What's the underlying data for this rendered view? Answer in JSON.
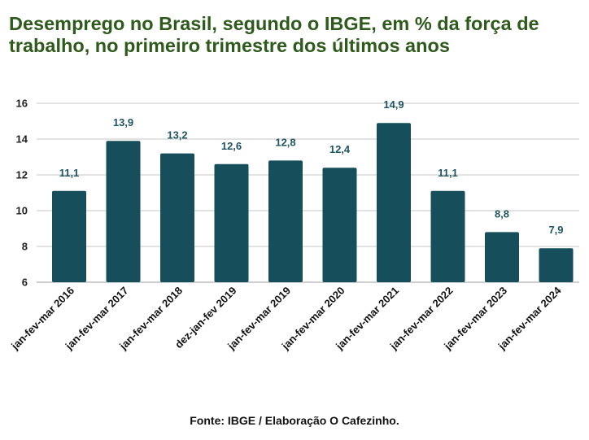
{
  "header": {
    "title": "Desemprego no Brasil, segundo o IBGE, em % da força de trabalho, no primeiro trimestre dos últimos anos"
  },
  "footer": {
    "source": "Fonte: IBGE / Elaboração O Cafezinho."
  },
  "colors": {
    "bar": "#164f5b",
    "title": "#2e5a1c",
    "data_label": "#1f5560",
    "grid": "#d9d9d9"
  },
  "chart_data": {
    "type": "bar",
    "categories": [
      "jan-fev-mar 2016",
      "jan-fev-mar 2017",
      "jan-fev-mar 2018",
      "dez-jan-fev 2019",
      "jan-fev-mar 2019",
      "jan-fev-mar 2020",
      "jan-fev-mar 2021",
      "jan-fev-mar 2022",
      "jan-fev-mar 2023",
      "jan-fev-mar 2024"
    ],
    "values": [
      11.1,
      13.9,
      13.2,
      12.6,
      12.8,
      12.4,
      14.9,
      11.1,
      8.8,
      7.9
    ],
    "data_labels": [
      "11,1",
      "13,9",
      "13,2",
      "12,6",
      "12,8",
      "12,4",
      "14,9",
      "11,1",
      "8,8",
      "7,9"
    ],
    "yticks": [
      6,
      8,
      10,
      12,
      14,
      16
    ],
    "ylim": [
      6,
      16
    ],
    "xlabel": "",
    "ylabel": "",
    "grid": true,
    "legend": false
  }
}
